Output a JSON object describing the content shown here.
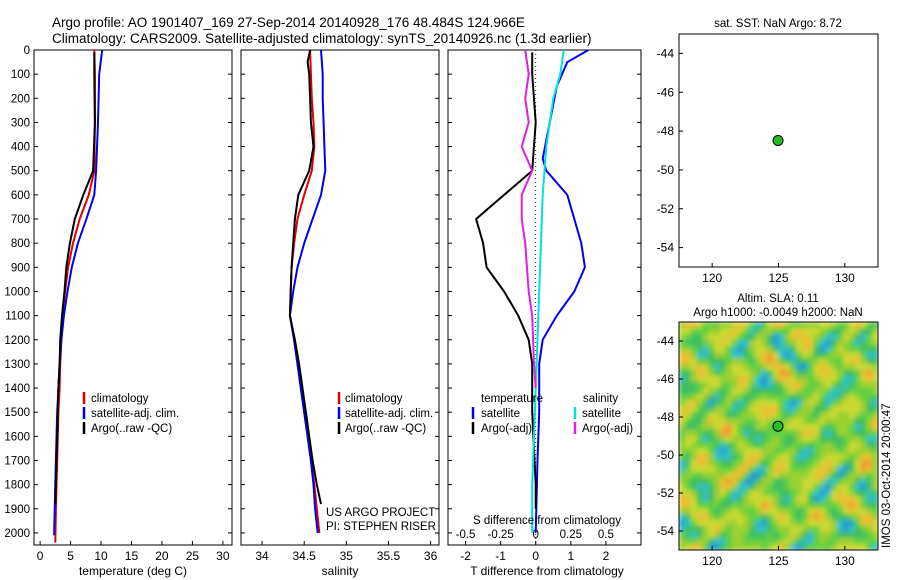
{
  "header": {
    "line1": "Argo profile: AO 1901407_169 27-Sep-2014 20140928_176 48.484S 124.966E",
    "line2": "Climatology: CARS2009. Satellite-adjusted climatology: synTS_20140926.nc (1.3d earlier)"
  },
  "colors": {
    "climatology": "#e00000",
    "satellite": "#0000ee",
    "argo": "#000000",
    "salinity_sat": "#00e0e0",
    "salinity_argo": "#e020e0",
    "marker": "#20c020"
  },
  "chart_data": [
    {
      "type": "line",
      "name": "temperature",
      "xlabel": "temperature (deg C)",
      "ylabel": "",
      "xlim": [
        -1,
        31.5
      ],
      "ylim": [
        2050,
        0
      ],
      "xticks": [
        0,
        5,
        10,
        15,
        20,
        25,
        30
      ],
      "yticks": [
        0,
        100,
        200,
        300,
        400,
        500,
        600,
        700,
        800,
        900,
        1000,
        1100,
        1200,
        1300,
        1400,
        1500,
        1600,
        1700,
        1800,
        1900,
        2000
      ],
      "legend": [
        "climatology",
        "satellite-adj. clim.",
        "Argo(..raw -QC)"
      ],
      "series": [
        {
          "name": "climatology",
          "color": "#e00000",
          "points": [
            [
              8.9,
              0
            ],
            [
              9.0,
              100
            ],
            [
              9.0,
              300
            ],
            [
              8.9,
              500
            ],
            [
              8.0,
              600
            ],
            [
              6.5,
              700
            ],
            [
              5.4,
              800
            ],
            [
              4.6,
              900
            ],
            [
              4.1,
              1000
            ],
            [
              3.7,
              1100
            ],
            [
              3.5,
              1200
            ],
            [
              3.3,
              1300
            ],
            [
              3.2,
              1400
            ],
            [
              3.0,
              1500
            ],
            [
              2.9,
              1600
            ],
            [
              2.8,
              1700
            ],
            [
              2.7,
              1800
            ],
            [
              2.6,
              1900
            ],
            [
              2.5,
              2040
            ]
          ]
        },
        {
          "name": "satellite-adj. clim.",
          "color": "#0000ee",
          "points": [
            [
              10.2,
              0
            ],
            [
              9.7,
              100
            ],
            [
              9.5,
              300
            ],
            [
              9.2,
              500
            ],
            [
              8.9,
              600
            ],
            [
              7.6,
              700
            ],
            [
              6.2,
              800
            ],
            [
              5.2,
              900
            ],
            [
              4.5,
              1000
            ],
            [
              3.9,
              1100
            ],
            [
              3.5,
              1200
            ],
            [
              3.2,
              1300
            ],
            [
              3.0,
              1400
            ],
            [
              2.8,
              1500
            ],
            [
              2.7,
              1600
            ],
            [
              2.6,
              1700
            ],
            [
              2.5,
              1800
            ],
            [
              2.4,
              1900
            ],
            [
              2.3,
              2010
            ]
          ]
        },
        {
          "name": "Argo(..raw -QC)",
          "color": "#000000",
          "points": [
            [
              8.9,
              10
            ],
            [
              8.9,
              100
            ],
            [
              9.0,
              300
            ],
            [
              8.7,
              500
            ],
            [
              7.1,
              600
            ],
            [
              5.7,
              700
            ],
            [
              4.9,
              800
            ],
            [
              4.3,
              900
            ],
            [
              4.0,
              1000
            ],
            [
              3.6,
              1100
            ],
            [
              3.3,
              1200
            ],
            [
              3.2,
              1300
            ],
            [
              3.0,
              1400
            ],
            [
              2.9,
              1500
            ],
            [
              2.8,
              1600
            ],
            [
              2.7,
              1700
            ],
            [
              2.6,
              1800
            ],
            [
              2.5,
              1880
            ]
          ]
        }
      ]
    },
    {
      "type": "line",
      "name": "salinity",
      "xlabel": "salinity",
      "xlim": [
        33.75,
        36.1
      ],
      "ylim": [
        2050,
        0
      ],
      "xticks": [
        34,
        34.5,
        35,
        35.5,
        36
      ],
      "xticklabels": [
        "34",
        "34.5",
        "35",
        "35.5",
        "36"
      ],
      "legend": [
        "climatology",
        "satellite-adj. clim.",
        "Argo(..raw -QC)"
      ],
      "annotations": [
        "US ARGO PROJECT",
        "PI: STEPHEN RISER"
      ],
      "series": [
        {
          "name": "climatology",
          "color": "#e00000",
          "points": [
            [
              34.57,
              0
            ],
            [
              34.58,
              100
            ],
            [
              34.59,
              200
            ],
            [
              34.61,
              300
            ],
            [
              34.62,
              400
            ],
            [
              34.59,
              500
            ],
            [
              34.5,
              600
            ],
            [
              34.42,
              700
            ],
            [
              34.38,
              800
            ],
            [
              34.35,
              900
            ],
            [
              34.34,
              1000
            ],
            [
              34.33,
              1100
            ],
            [
              34.38,
              1200
            ],
            [
              34.42,
              1300
            ],
            [
              34.46,
              1400
            ],
            [
              34.5,
              1500
            ],
            [
              34.54,
              1600
            ],
            [
              34.58,
              1700
            ],
            [
              34.62,
              1800
            ],
            [
              34.65,
              1900
            ],
            [
              34.68,
              2000
            ]
          ]
        },
        {
          "name": "satellite-adj. clim.",
          "color": "#0000ee",
          "points": [
            [
              34.7,
              0
            ],
            [
              34.72,
              100
            ],
            [
              34.72,
              200
            ],
            [
              34.73,
              300
            ],
            [
              34.74,
              400
            ],
            [
              34.75,
              500
            ],
            [
              34.7,
              600
            ],
            [
              34.6,
              700
            ],
            [
              34.5,
              800
            ],
            [
              34.42,
              900
            ],
            [
              34.37,
              1000
            ],
            [
              34.33,
              1100
            ],
            [
              34.38,
              1200
            ],
            [
              34.42,
              1300
            ],
            [
              34.46,
              1400
            ],
            [
              34.5,
              1500
            ],
            [
              34.54,
              1600
            ],
            [
              34.58,
              1700
            ],
            [
              34.61,
              1800
            ],
            [
              34.63,
              1900
            ],
            [
              34.66,
              2000
            ]
          ]
        },
        {
          "name": "Argo(..raw -QC)",
          "color": "#000000",
          "points": [
            [
              34.57,
              0
            ],
            [
              34.54,
              50
            ],
            [
              34.56,
              100
            ],
            [
              34.57,
              200
            ],
            [
              34.58,
              300
            ],
            [
              34.61,
              400
            ],
            [
              34.56,
              500
            ],
            [
              34.43,
              600
            ],
            [
              34.39,
              700
            ],
            [
              34.37,
              800
            ],
            [
              34.35,
              900
            ],
            [
              34.34,
              1000
            ],
            [
              34.33,
              1100
            ],
            [
              34.39,
              1200
            ],
            [
              34.44,
              1300
            ],
            [
              34.48,
              1400
            ],
            [
              34.52,
              1500
            ],
            [
              34.56,
              1600
            ],
            [
              34.6,
              1700
            ],
            [
              34.65,
              1800
            ],
            [
              34.7,
              1880
            ]
          ]
        }
      ]
    },
    {
      "type": "line",
      "name": "differences",
      "xlabel": "T difference from climatology",
      "xlabel2": "S difference from climatology",
      "xlim": [
        -2.5,
        3.0
      ],
      "ylim": [
        2050,
        0
      ],
      "xticks": [
        -2,
        -1,
        0,
        1,
        2
      ],
      "x2ticks": [
        -0.5,
        -0.25,
        0,
        0.25,
        0.5
      ],
      "x2ticklabels": [
        "-0.5",
        "-0.25",
        "0",
        "0.25",
        "0.5"
      ],
      "legend_headers": [
        "temperature",
        "salinity"
      ],
      "legend": [
        "satellite",
        "Argo(-adj)",
        "satellite",
        "Argo(-adj)"
      ],
      "series": [
        {
          "name": "satellite",
          "group": "temperature",
          "color": "#0000ee",
          "points": [
            [
              1.5,
              0
            ],
            [
              0.9,
              50
            ],
            [
              0.6,
              150
            ],
            [
              0.4,
              300
            ],
            [
              0.2,
              450
            ],
            [
              0.3,
              500
            ],
            [
              0.9,
              600
            ],
            [
              1.1,
              700
            ],
            [
              1.3,
              800
            ],
            [
              1.4,
              900
            ],
            [
              1.1,
              1000
            ],
            [
              0.6,
              1100
            ],
            [
              0.2,
              1200
            ],
            [
              0.1,
              1300
            ],
            [
              0.1,
              1400
            ],
            [
              0.1,
              1500
            ],
            [
              0.05,
              1700
            ],
            [
              0.0,
              2000
            ]
          ]
        },
        {
          "name": "Argo(-adj)",
          "group": "temperature",
          "color": "#000000",
          "points": [
            [
              -0.1,
              10
            ],
            [
              -0.1,
              100
            ],
            [
              0.0,
              300
            ],
            [
              -0.1,
              500
            ],
            [
              -0.9,
              600
            ],
            [
              -1.7,
              700
            ],
            [
              -1.5,
              800
            ],
            [
              -1.4,
              900
            ],
            [
              -0.9,
              1000
            ],
            [
              -0.5,
              1100
            ],
            [
              -0.2,
              1200
            ],
            [
              -0.1,
              1300
            ],
            [
              -0.1,
              1500
            ],
            [
              0.0,
              1800
            ],
            [
              0.0,
              1900
            ]
          ]
        },
        {
          "name": "satellite",
          "group": "salinity",
          "color": "#00e0e0",
          "points": [
            [
              0.8,
              0
            ],
            [
              0.7,
              100
            ],
            [
              0.5,
              200
            ],
            [
              0.3,
              400
            ],
            [
              0.2,
              600
            ],
            [
              0.15,
              800
            ],
            [
              0.1,
              1000
            ],
            [
              0.05,
              1200
            ],
            [
              0.0,
              1400
            ],
            [
              -0.05,
              1600
            ],
            [
              -0.1,
              1800
            ],
            [
              -0.1,
              2000
            ]
          ]
        },
        {
          "name": "Argo(-adj)",
          "group": "salinity",
          "color": "#e020e0",
          "points": [
            [
              -0.3,
              0
            ],
            [
              -0.2,
              100
            ],
            [
              -0.3,
              200
            ],
            [
              -0.2,
              300
            ],
            [
              -0.4,
              400
            ],
            [
              -0.1,
              500
            ],
            [
              -0.4,
              600
            ],
            [
              -0.4,
              700
            ],
            [
              -0.3,
              800
            ],
            [
              -0.2,
              1000
            ],
            [
              -0.1,
              1100
            ],
            [
              -0.05,
              1300
            ],
            [
              0.0,
              1400
            ]
          ]
        }
      ]
    },
    {
      "type": "scatter",
      "name": "sst-map",
      "title": "sat. SST: NaN Argo: 8.72",
      "xlim": [
        117.5,
        132.5
      ],
      "ylim": [
        -55,
        -43
      ],
      "xticks": [
        120,
        125,
        130
      ],
      "yticks": [
        -44,
        -46,
        -48,
        -50,
        -52,
        -54
      ],
      "points": [
        [
          124.966,
          -48.484
        ]
      ]
    },
    {
      "type": "heatmap",
      "name": "sla-map",
      "title": "Altim. SLA: 0.11",
      "subtitle": "Argo h1000: -0.0049 h2000: NaN",
      "side_label": "IMOS 03-Oct-2014 20:00:47",
      "xlim": [
        117.5,
        132.5
      ],
      "ylim": [
        -55,
        -43
      ],
      "xticks": [
        120,
        125,
        130
      ],
      "yticks": [
        -44,
        -46,
        -48,
        -50,
        -52,
        -54
      ],
      "points": [
        [
          124.966,
          -48.484
        ]
      ]
    }
  ]
}
